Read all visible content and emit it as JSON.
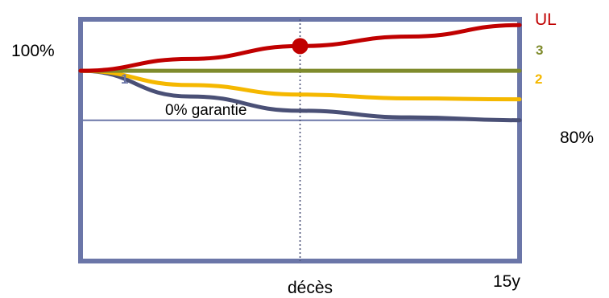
{
  "chart_data": {
    "type": "line",
    "x": [
      0,
      0.25,
      0.5,
      0.75,
      1.0
    ],
    "y_tick_labels": {
      "top": "100%",
      "bottom": "80%"
    },
    "x_tick_labels": {
      "middle": "décès",
      "end": "15y"
    },
    "guarantee_label": "0% garantie",
    "series": [
      {
        "name": "UL",
        "color": "#c00000",
        "values": [
          100,
          102.5,
          105.2,
          107.2,
          109.6
        ]
      },
      {
        "name": "3",
        "color": "#7f8b2c",
        "values": [
          100,
          100,
          100,
          100,
          100
        ]
      },
      {
        "name": "2",
        "color": "#f5b800",
        "values": [
          100,
          97.0,
          95.0,
          94.2,
          94.0
        ]
      },
      {
        "name": "1",
        "color": "#4a5076",
        "values": [
          100,
          94.6,
          91.6,
          90.2,
          89.6
        ]
      }
    ],
    "guarantee_level": 89.6,
    "death_point": {
      "series": "UL",
      "x": 0.5
    },
    "ylim": [
      60,
      111
    ],
    "frame_color": "#6b76a8"
  }
}
